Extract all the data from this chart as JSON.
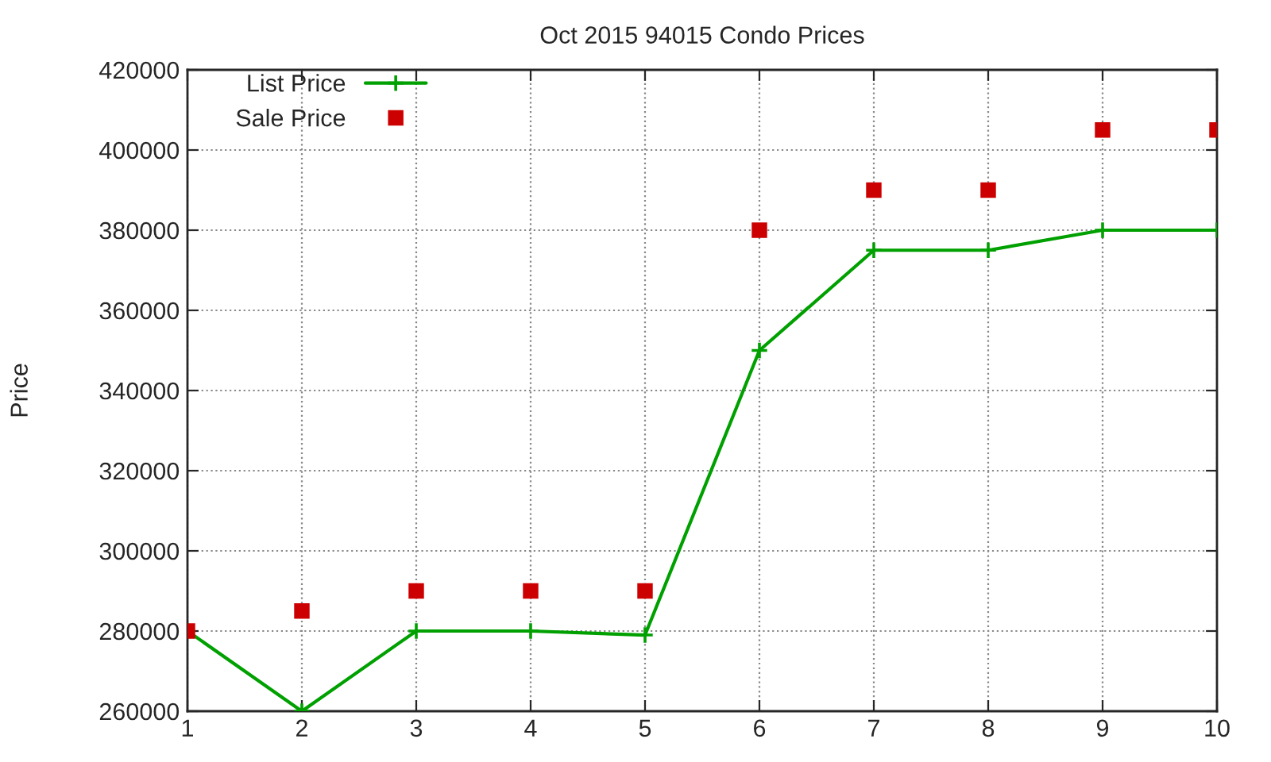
{
  "chart_data": {
    "type": "line",
    "title": "Oct 2015 94015 Condo Prices",
    "ylabel": "Price",
    "x": [
      1,
      2,
      3,
      4,
      5,
      6,
      7,
      8,
      9,
      10
    ],
    "series": [
      {
        "name": "List Price",
        "color": "#00a000",
        "marker": "cross",
        "values": [
          280000,
          260000,
          280000,
          280000,
          279000,
          350000,
          375000,
          375000,
          380000,
          380000
        ]
      },
      {
        "name": "Sale Price",
        "type": "scatter",
        "color": "#cc0000",
        "marker": "square",
        "values": [
          280000,
          285000,
          290000,
          290000,
          290000,
          380000,
          390000,
          390000,
          405000,
          405000
        ]
      }
    ],
    "xlim": [
      1,
      10
    ],
    "xticks": [
      1,
      2,
      3,
      4,
      5,
      6,
      7,
      8,
      9,
      10
    ],
    "ylim": [
      260000,
      420000
    ],
    "yticks": [
      260000,
      280000,
      300000,
      320000,
      340000,
      360000,
      380000,
      400000,
      420000
    ],
    "grid": true,
    "legend": "top left"
  }
}
